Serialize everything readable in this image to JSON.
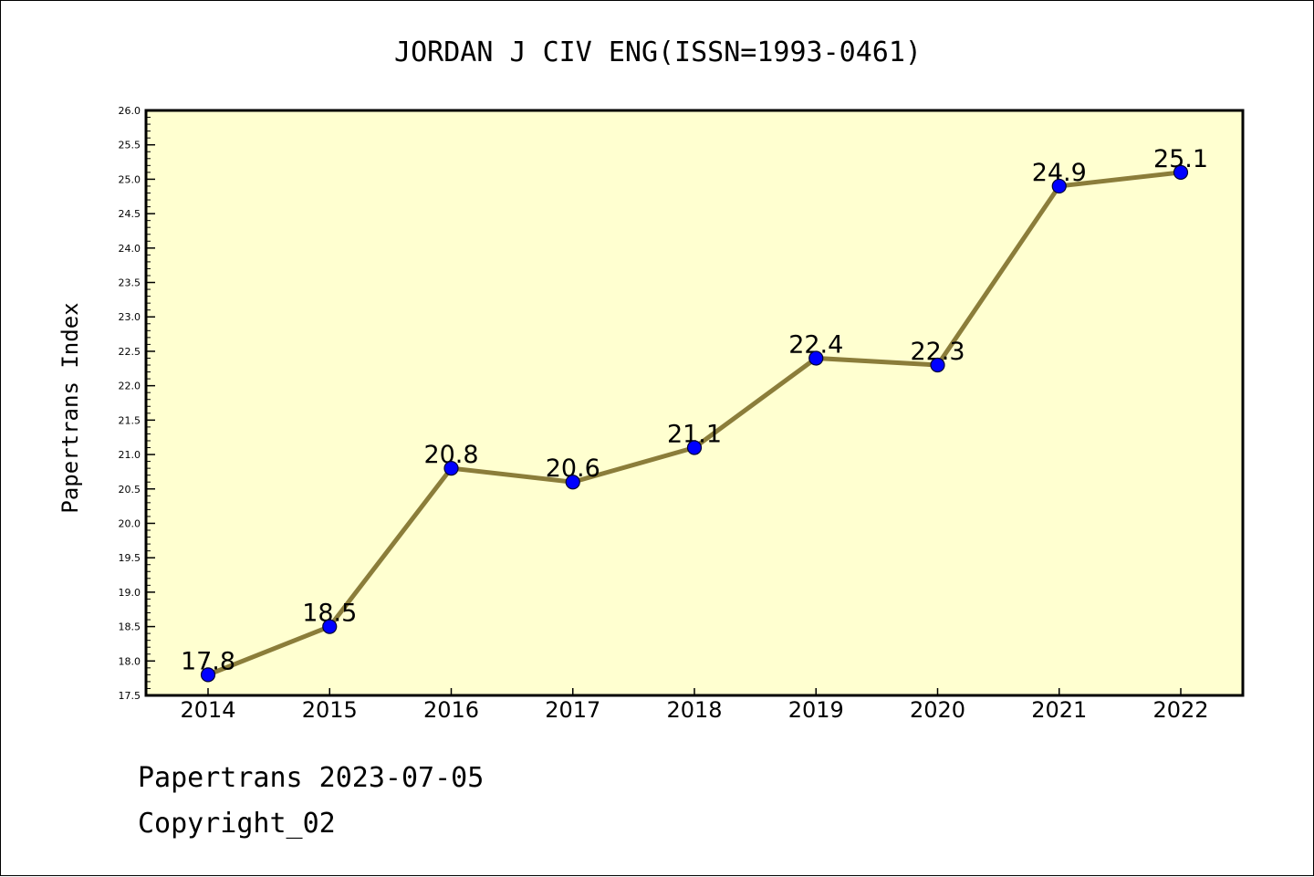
{
  "chart_data": {
    "type": "line",
    "title": "JORDAN J CIV ENG(ISSN=1993-0461)",
    "xlabel": "",
    "ylabel": "Papertrans Index",
    "categories": [
      "2014",
      "2015",
      "2016",
      "2017",
      "2018",
      "2019",
      "2020",
      "2021",
      "2022"
    ],
    "series": [
      {
        "values": [
          17.8,
          18.5,
          20.8,
          20.6,
          21.1,
          22.4,
          22.3,
          24.9,
          25.1
        ],
        "labels": [
          "17.8",
          "18.5",
          "20.8",
          "20.6",
          "21.1",
          "22.4",
          "22.3",
          "24.9",
          "25.1"
        ]
      }
    ],
    "ylim": [
      17.5,
      26.0
    ],
    "yticks": [
      "17.5",
      "18.0",
      "18.5",
      "19.0",
      "19.5",
      "20.0",
      "20.5",
      "21.0",
      "21.5",
      "22.0",
      "22.5",
      "23.0",
      "23.5",
      "24.0",
      "24.5",
      "25.0",
      "25.5",
      "26.0"
    ],
    "grid": false,
    "legend": "none",
    "colors": {
      "plot_background": "#ffffd0",
      "line": "#8b7d3a",
      "marker": "#0000ff",
      "marker_edge": "#000033"
    }
  },
  "footer": {
    "source_line": "Papertrans 2023-07-05",
    "copyright_line": "Copyright_02"
  }
}
